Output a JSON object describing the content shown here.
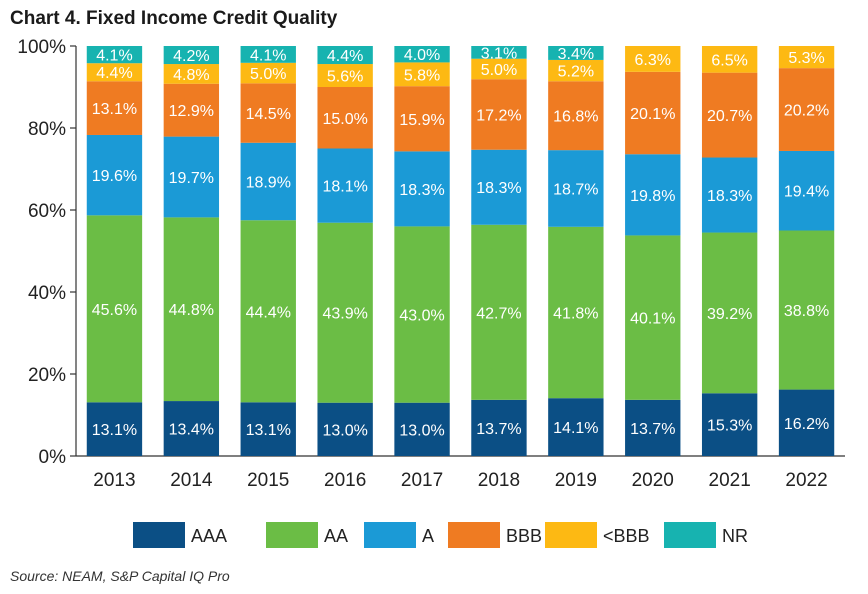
{
  "chart_data": {
    "type": "bar",
    "stacked": true,
    "title": "Chart 4. Fixed Income Credit Quality",
    "source": "Source: NEAM, S&P Capital IQ Pro",
    "xlabel": "",
    "ylabel": "",
    "ylim": [
      0,
      100
    ],
    "yticks": [
      "0%",
      "20%",
      "40%",
      "60%",
      "80%",
      "100%"
    ],
    "ytick_values": [
      0,
      20,
      40,
      60,
      80,
      100
    ],
    "legend_position": "bottom",
    "categories": [
      "2013",
      "2014",
      "2015",
      "2016",
      "2017",
      "2018",
      "2019",
      "2020",
      "2021",
      "2022"
    ],
    "series": [
      {
        "name": "AAA",
        "color": "#0b4f85",
        "values": [
          13.1,
          13.4,
          13.1,
          13.0,
          13.0,
          13.7,
          14.1,
          13.7,
          15.3,
          16.2
        ],
        "labels": [
          "13.1%",
          "13.4%",
          "13.1%",
          "13.0%",
          "13.0%",
          "13.7%",
          "14.1%",
          "13.7%",
          "15.3%",
          "16.2%"
        ]
      },
      {
        "name": "AA",
        "color": "#6bbd45",
        "values": [
          45.6,
          44.8,
          44.4,
          43.9,
          43.0,
          42.7,
          41.8,
          40.1,
          39.2,
          38.8
        ],
        "labels": [
          "45.6%",
          "44.8%",
          "44.4%",
          "43.9%",
          "43.0%",
          "42.7%",
          "41.8%",
          "40.1%",
          "39.2%",
          "38.8%"
        ]
      },
      {
        "name": "A",
        "color": "#1b9ad6",
        "values": [
          19.6,
          19.7,
          18.9,
          18.1,
          18.3,
          18.3,
          18.7,
          19.8,
          18.3,
          19.4
        ],
        "labels": [
          "19.6%",
          "19.7%",
          "18.9%",
          "18.1%",
          "18.3%",
          "18.3%",
          "18.7%",
          "19.8%",
          "18.3%",
          "19.4%"
        ]
      },
      {
        "name": "BBB",
        "color": "#ef7b22",
        "values": [
          13.1,
          12.9,
          14.5,
          15.0,
          15.9,
          17.2,
          16.8,
          20.1,
          20.7,
          20.2
        ],
        "labels": [
          "13.1%",
          "12.9%",
          "14.5%",
          "15.0%",
          "15.9%",
          "17.2%",
          "16.8%",
          "20.1%",
          "20.7%",
          "20.2%"
        ]
      },
      {
        "name": "<BBB",
        "color": "#fdb913",
        "values": [
          4.4,
          4.8,
          5.0,
          5.6,
          5.8,
          5.0,
          5.2,
          6.3,
          6.5,
          5.3
        ],
        "labels": [
          "4.4%",
          "4.8%",
          "5.0%",
          "5.6%",
          "5.8%",
          "5.0%",
          "5.2%",
          "6.3%",
          "6.5%",
          "5.3%"
        ]
      },
      {
        "name": "NR",
        "color": "#17b3b0",
        "values": [
          4.1,
          4.2,
          4.1,
          4.4,
          4.0,
          3.1,
          3.4,
          0,
          0,
          0
        ],
        "labels": [
          "4.1%",
          "4.2%",
          "4.1%",
          "4.4%",
          "4.0%",
          "3.1%",
          "3.4%",
          "",
          "",
          ""
        ]
      }
    ]
  }
}
